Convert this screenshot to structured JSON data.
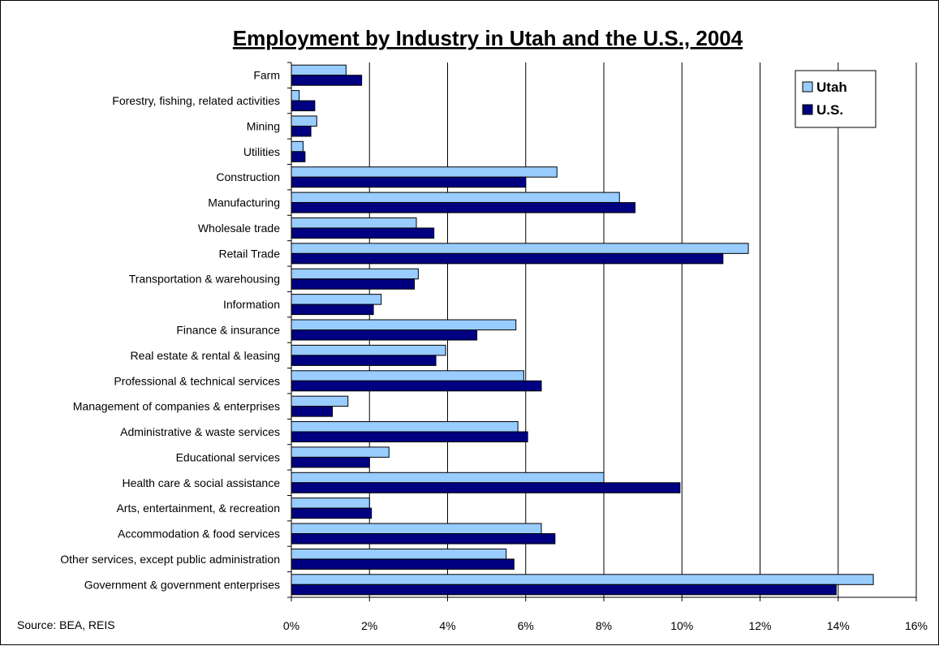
{
  "chart_data": {
    "type": "bar",
    "orientation": "horizontal",
    "title": "Employment by Industry in Utah and the U.S., 2004",
    "source": "Source: BEA, REIS",
    "xlim": [
      0,
      16
    ],
    "x_ticks": [
      0,
      2,
      4,
      6,
      8,
      10,
      12,
      14,
      16
    ],
    "x_tick_labels": [
      "0%",
      "2%",
      "4%",
      "6%",
      "8%",
      "10%",
      "12%",
      "14%",
      "16%"
    ],
    "grid": true,
    "legend_position": "top-right",
    "categories": [
      "Farm",
      "Forestry, fishing, related activities",
      "Mining",
      "Utilities",
      "Construction",
      "Manufacturing",
      "Wholesale trade",
      "Retail Trade",
      "Transportation & warehousing",
      "Information",
      "Finance & insurance",
      "Real estate & rental & leasing",
      "Professional & technical services",
      "Management of companies & enterprises",
      "Administrative & waste services",
      "Educational services",
      "Health care & social assistance",
      "Arts, entertainment, & recreation",
      "Accommodation & food services",
      "Other services, except public administration",
      "Government & government enterprises"
    ],
    "series": [
      {
        "name": "Utah",
        "color": "#99ccff",
        "values": [
          1.4,
          0.2,
          0.65,
          0.3,
          6.8,
          8.4,
          3.2,
          11.7,
          3.25,
          2.3,
          5.75,
          3.95,
          5.95,
          1.45,
          5.8,
          2.5,
          8.0,
          2.0,
          6.4,
          5.5,
          14.9
        ]
      },
      {
        "name": "U.S.",
        "color": "#000080",
        "values": [
          1.8,
          0.6,
          0.5,
          0.35,
          6.0,
          8.8,
          3.65,
          11.05,
          3.15,
          2.1,
          4.75,
          3.7,
          6.4,
          1.05,
          6.05,
          2.0,
          9.95,
          2.05,
          6.75,
          5.7,
          13.95
        ]
      }
    ]
  }
}
